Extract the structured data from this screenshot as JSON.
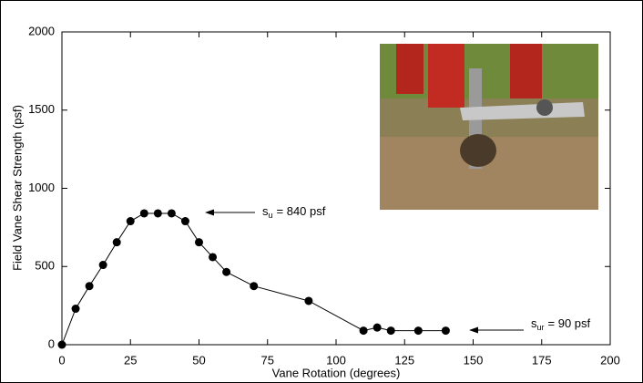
{
  "chart_data": {
    "type": "line",
    "x_label": "Vane Rotation (degrees)",
    "y_label": "Field Vane Shear Strength (psf)",
    "x": [
      0,
      5,
      10,
      15,
      20,
      25,
      30,
      35,
      40,
      45,
      50,
      55,
      60,
      70,
      90,
      110,
      115,
      120,
      130,
      140
    ],
    "series": [
      {
        "color": "#000000",
        "values": [
          0,
          230,
          375,
          510,
          655,
          790,
          840,
          840,
          840,
          790,
          655,
          560,
          465,
          375,
          280,
          90,
          110,
          90,
          90,
          90
        ]
      }
    ],
    "xlim": [
      0,
      200
    ],
    "xticks": [
      0,
      25,
      50,
      75,
      100,
      125,
      150,
      175,
      200
    ],
    "ylim": [
      0,
      2000
    ],
    "yticks": [
      0,
      500,
      1000,
      1500,
      2000
    ],
    "grid": false,
    "annotations": [
      {
        "symbol": "s",
        "subscript": "u",
        "text": "= 840 psf"
      },
      {
        "symbol": "s",
        "subscript": "ur",
        "text": "= 90 psf"
      }
    ]
  }
}
